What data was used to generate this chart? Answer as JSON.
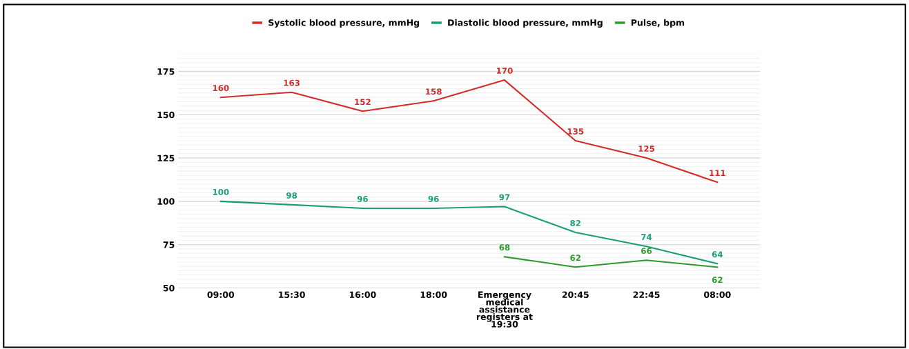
{
  "chart_data": {
    "type": "line",
    "categories": [
      "09:00",
      "15:30",
      "16:00",
      "18:00",
      "Emergency\nmedical\nassistance\nregisters at\n19:30",
      "20:45",
      "22:45",
      "08:00"
    ],
    "series": [
      {
        "name": "Systolic blood pressure, mmHg",
        "color": "#d42a2a",
        "values": [
          160,
          163,
          152,
          158,
          170,
          135,
          125,
          111
        ]
      },
      {
        "name": "Diastolic blood pressure, mmHg",
        "color": "#1a9e77",
        "values": [
          100,
          98,
          96,
          96,
          97,
          82,
          74,
          64
        ]
      },
      {
        "name": "Pulse, bpm",
        "color": "#2e9a2e",
        "values": [
          null,
          null,
          null,
          null,
          68,
          62,
          66,
          62
        ]
      }
    ],
    "ylim": [
      50,
      185
    ],
    "yticks": [
      50,
      75,
      100,
      125,
      150,
      175
    ],
    "grid": "y",
    "legend": "top",
    "marker": "none",
    "line_style": "solid",
    "data_labels": true
  }
}
